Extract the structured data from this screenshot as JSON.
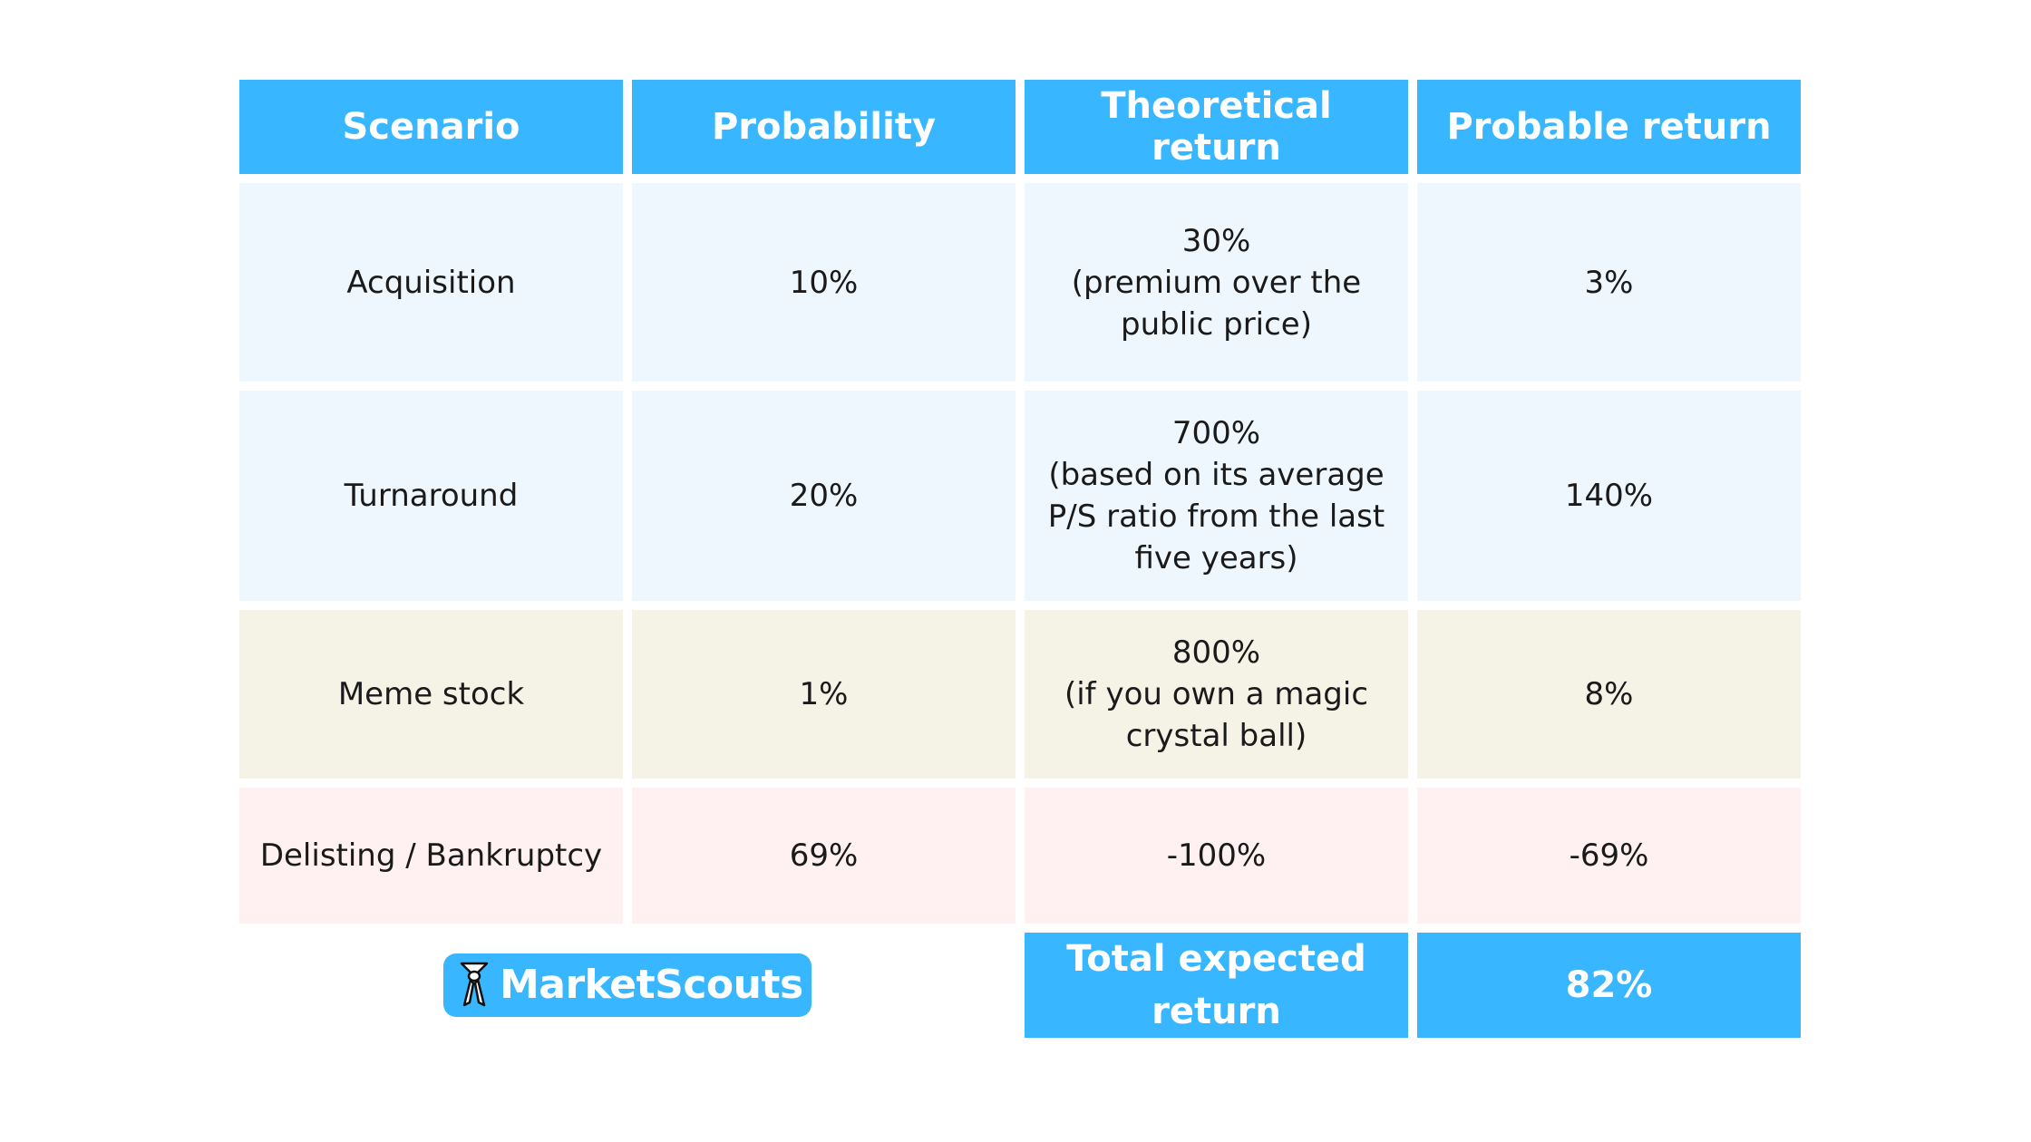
{
  "table": {
    "headers": [
      "Scenario",
      "Probability",
      "Theoretical return",
      "Probable return"
    ],
    "rows": [
      {
        "scenario": "Acquisition",
        "probability": "10%",
        "theoretical": "30%\n(premium over the\npublic price)",
        "probable": "3%"
      },
      {
        "scenario": "Turnaround",
        "probability": "20%",
        "theoretical": "700%\n(based on its average\nP/S ratio from the last\nfive years)",
        "probable": "140%"
      },
      {
        "scenario": "Meme stock",
        "probability": "1%",
        "theoretical": "800%\n(if you own a magic\ncrystal ball)",
        "probable": "8%"
      },
      {
        "scenario": "Delisting / Bankruptcy",
        "probability": "69%",
        "theoretical": "-100%",
        "probable": "-69%"
      }
    ],
    "total": {
      "label": "Total expected\nreturn",
      "value": "82%"
    }
  },
  "logo": {
    "text": "MarketScouts",
    "icon": "scout-neckerchief-icon"
  },
  "colors": {
    "header": "#38b6ff",
    "row_blue": "#eef7fd",
    "row_beige": "#f5f2e6",
    "row_pink": "#fff0f2"
  }
}
